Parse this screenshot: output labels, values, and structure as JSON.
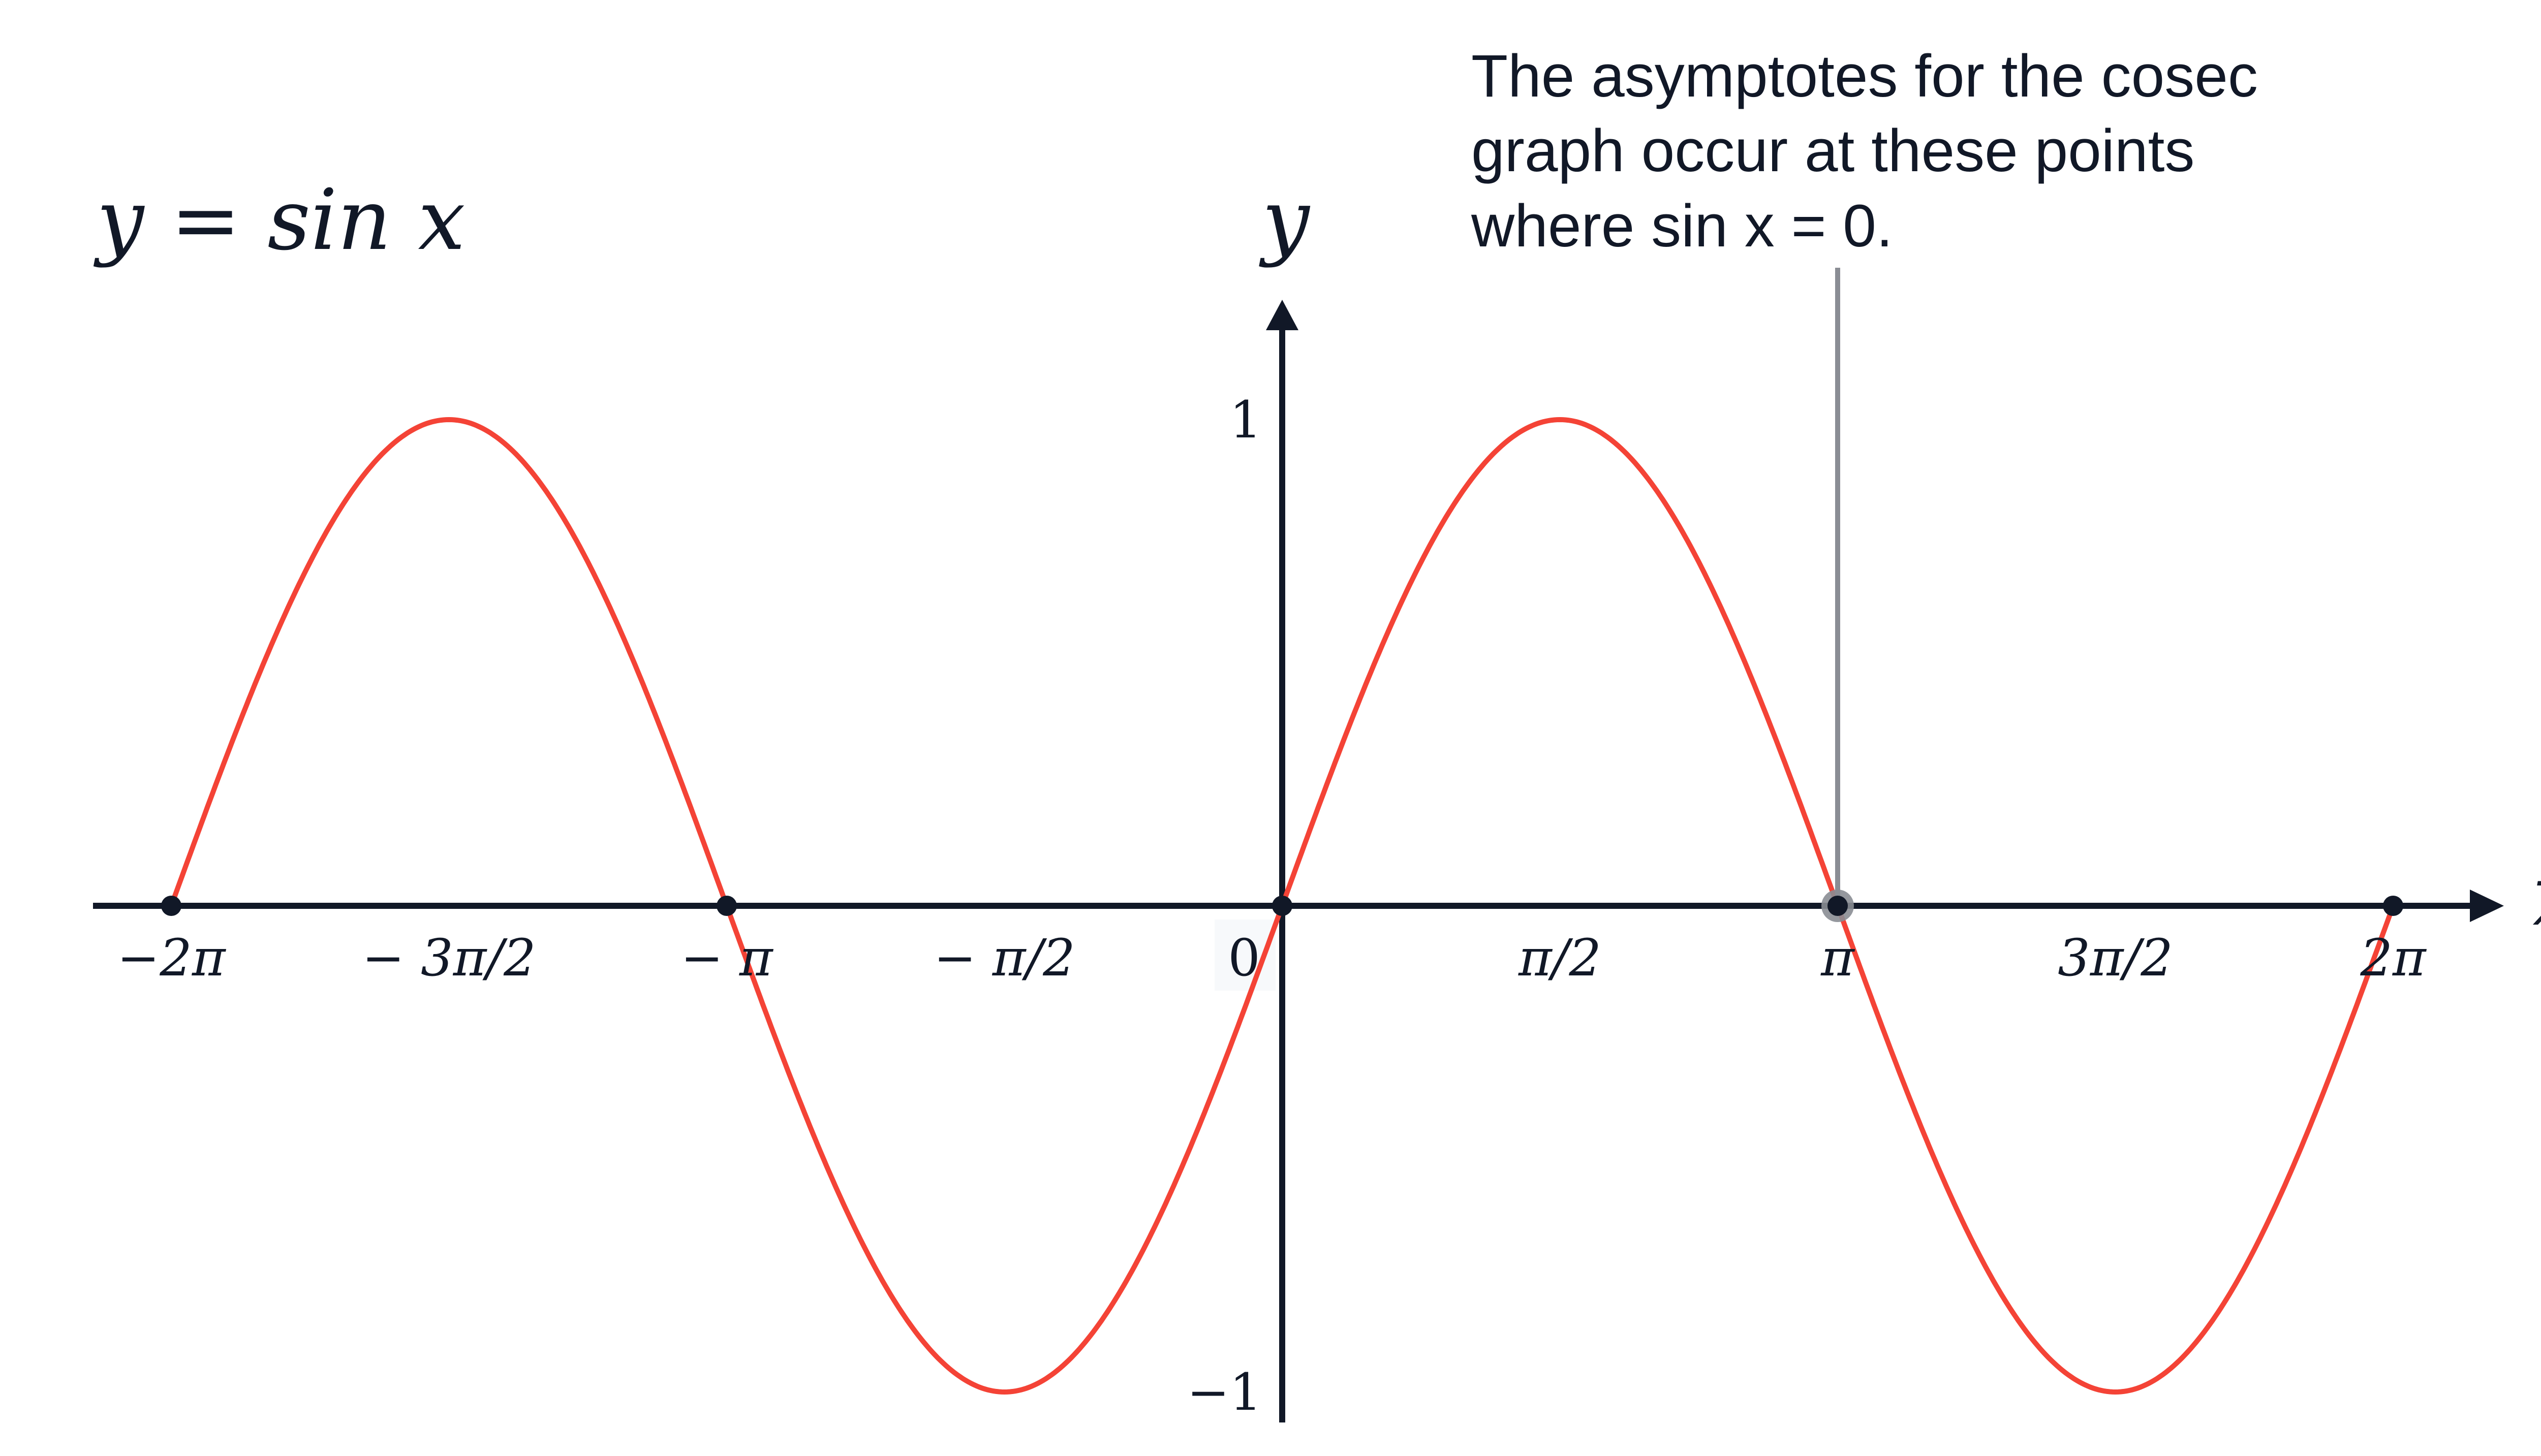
{
  "chart_data": {
    "type": "line",
    "title": "y = sin x",
    "xlabel": "x",
    "ylabel": "y",
    "function": "sin",
    "x_range_pi": [
      -2,
      2
    ],
    "xlim_pi": [
      -2.1,
      2.2
    ],
    "ylim": [
      -1.07,
      1.2
    ],
    "grid": false,
    "series": [
      {
        "name": "y = sin x",
        "color": "#f44336",
        "x_start_pi": -2,
        "x_end_pi": 2
      }
    ],
    "x_ticks": [
      {
        "value_pi": -2,
        "label": "−2π"
      },
      {
        "value_pi": -1.5,
        "label": "− 3π/2"
      },
      {
        "value_pi": -1,
        "label": "− π"
      },
      {
        "value_pi": -0.5,
        "label": "− π/2"
      },
      {
        "value_pi": 0,
        "label": "0"
      },
      {
        "value_pi": 0.5,
        "label": "π/2"
      },
      {
        "value_pi": 1,
        "label": "π"
      },
      {
        "value_pi": 1.5,
        "label": "3π/2"
      },
      {
        "value_pi": 2,
        "label": "2π"
      }
    ],
    "y_ticks": [
      {
        "value": 1,
        "label": "1"
      },
      {
        "value": -1,
        "label": "−1"
      }
    ],
    "points_pi": [
      -2,
      -1,
      0,
      1,
      2
    ],
    "highlight_point_pi": 1,
    "annotation": {
      "lines": [
        "The asymptotes for the cosec",
        "graph occur at these points",
        "where sin x = 0."
      ],
      "target_pi": 1
    },
    "colors": {
      "curve": "#f44336",
      "axis": "#111827",
      "annotation_line": "#8a8d94"
    }
  }
}
